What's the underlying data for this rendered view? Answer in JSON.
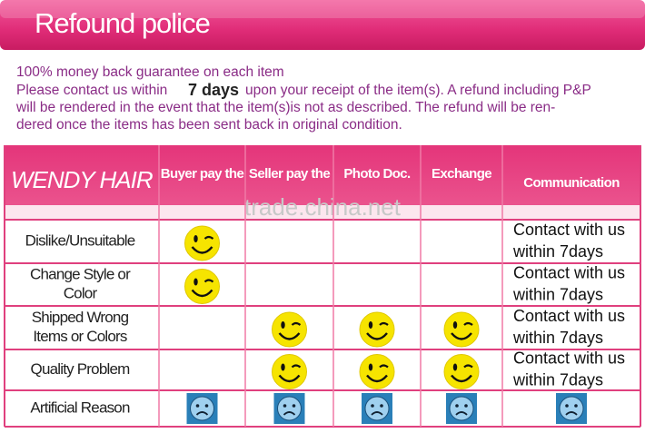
{
  "header": {
    "title": "Refound police"
  },
  "intro": {
    "guarantee": "100% money back guarantee on each item",
    "contact_before": "Please contact us within",
    "days": "7 days",
    "contact_after": "upon your receipt of the item(s).  A refund including P&P",
    "lines": [
      "will be rendered in the event that the item(s)is not as described. The refund will be ren-",
      "dered once the items has been sent back in original condition."
    ]
  },
  "table": {
    "brand": "WENDY HAIR",
    "columns": [
      "Buyer pay the",
      "Seller pay the",
      "Photo Doc.",
      "Exchange",
      "Communication"
    ],
    "rows": [
      {
        "label": [
          "Dislike/Unsuitable"
        ],
        "communication": [
          "Contact with us",
          "within 7days"
        ]
      },
      {
        "label": [
          "Change Style or",
          "Color"
        ],
        "communication": [
          "Contact with us",
          "within 7days"
        ]
      },
      {
        "label": [
          "Shipped Wrong",
          "Items or Colors"
        ],
        "communication": [
          "Contact with us",
          "within 7days"
        ]
      },
      {
        "label": [
          "Quality Problem"
        ],
        "communication": [
          "Contact with us",
          "within 7days"
        ]
      },
      {
        "label": [
          "Artificial Reason"
        ]
      }
    ]
  },
  "watermark": "trade.china.net"
}
